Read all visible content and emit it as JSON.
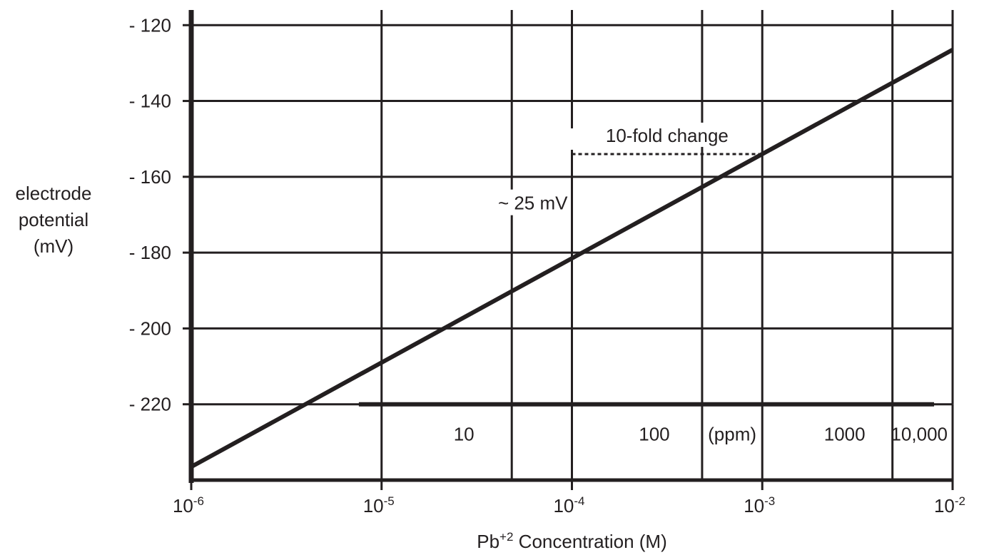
{
  "chart_data": {
    "type": "line",
    "xlabel_main": "Pb",
    "xlabel_sup": "+2",
    "xlabel_rest": " Concentration (M)",
    "ylabel_lines": [
      "electrode",
      "potential",
      "(mV)"
    ],
    "x_scale": "log",
    "xlim": [
      1e-06,
      0.01
    ],
    "ylim": [
      -240,
      -116
    ],
    "x_ticks": [
      {
        "value": 1e-06,
        "base": "10",
        "exp": "-6"
      },
      {
        "value": 1e-05,
        "base": "10",
        "exp": "-5"
      },
      {
        "value": 0.0001,
        "base": "10",
        "exp": "-4"
      },
      {
        "value": 0.001,
        "base": "10",
        "exp": "-3"
      },
      {
        "value": 0.01,
        "base": "10",
        "exp": "-2"
      }
    ],
    "y_ticks": [
      {
        "value": -120,
        "label": "- 120"
      },
      {
        "value": -140,
        "label": "- 140"
      },
      {
        "value": -160,
        "label": "- 160"
      },
      {
        "value": -180,
        "label": "- 180"
      },
      {
        "value": -200,
        "label": "- 200"
      },
      {
        "value": -220,
        "label": "- 220"
      }
    ],
    "secondary_axis": {
      "unit_label": "(ppm)",
      "ticks": [
        {
          "value": 4.83e-05,
          "label": "10"
        },
        {
          "value": 0.000483,
          "label": "100"
        },
        {
          "value": 0.00483,
          "label": "1000"
        },
        {
          "value": 0.0483,
          "label": "10,000"
        }
      ]
    },
    "series": [
      {
        "points": [
          [
            1e-06,
            -236.5
          ],
          [
            0.01,
            -126.5
          ]
        ]
      }
    ],
    "annotations": {
      "fold_label": "10-fold change",
      "mv_label": "~ 25 mV",
      "x_start": 0.0001,
      "x_end": 0.001,
      "y_low": -181,
      "y_high": -154
    },
    "grid": true
  }
}
